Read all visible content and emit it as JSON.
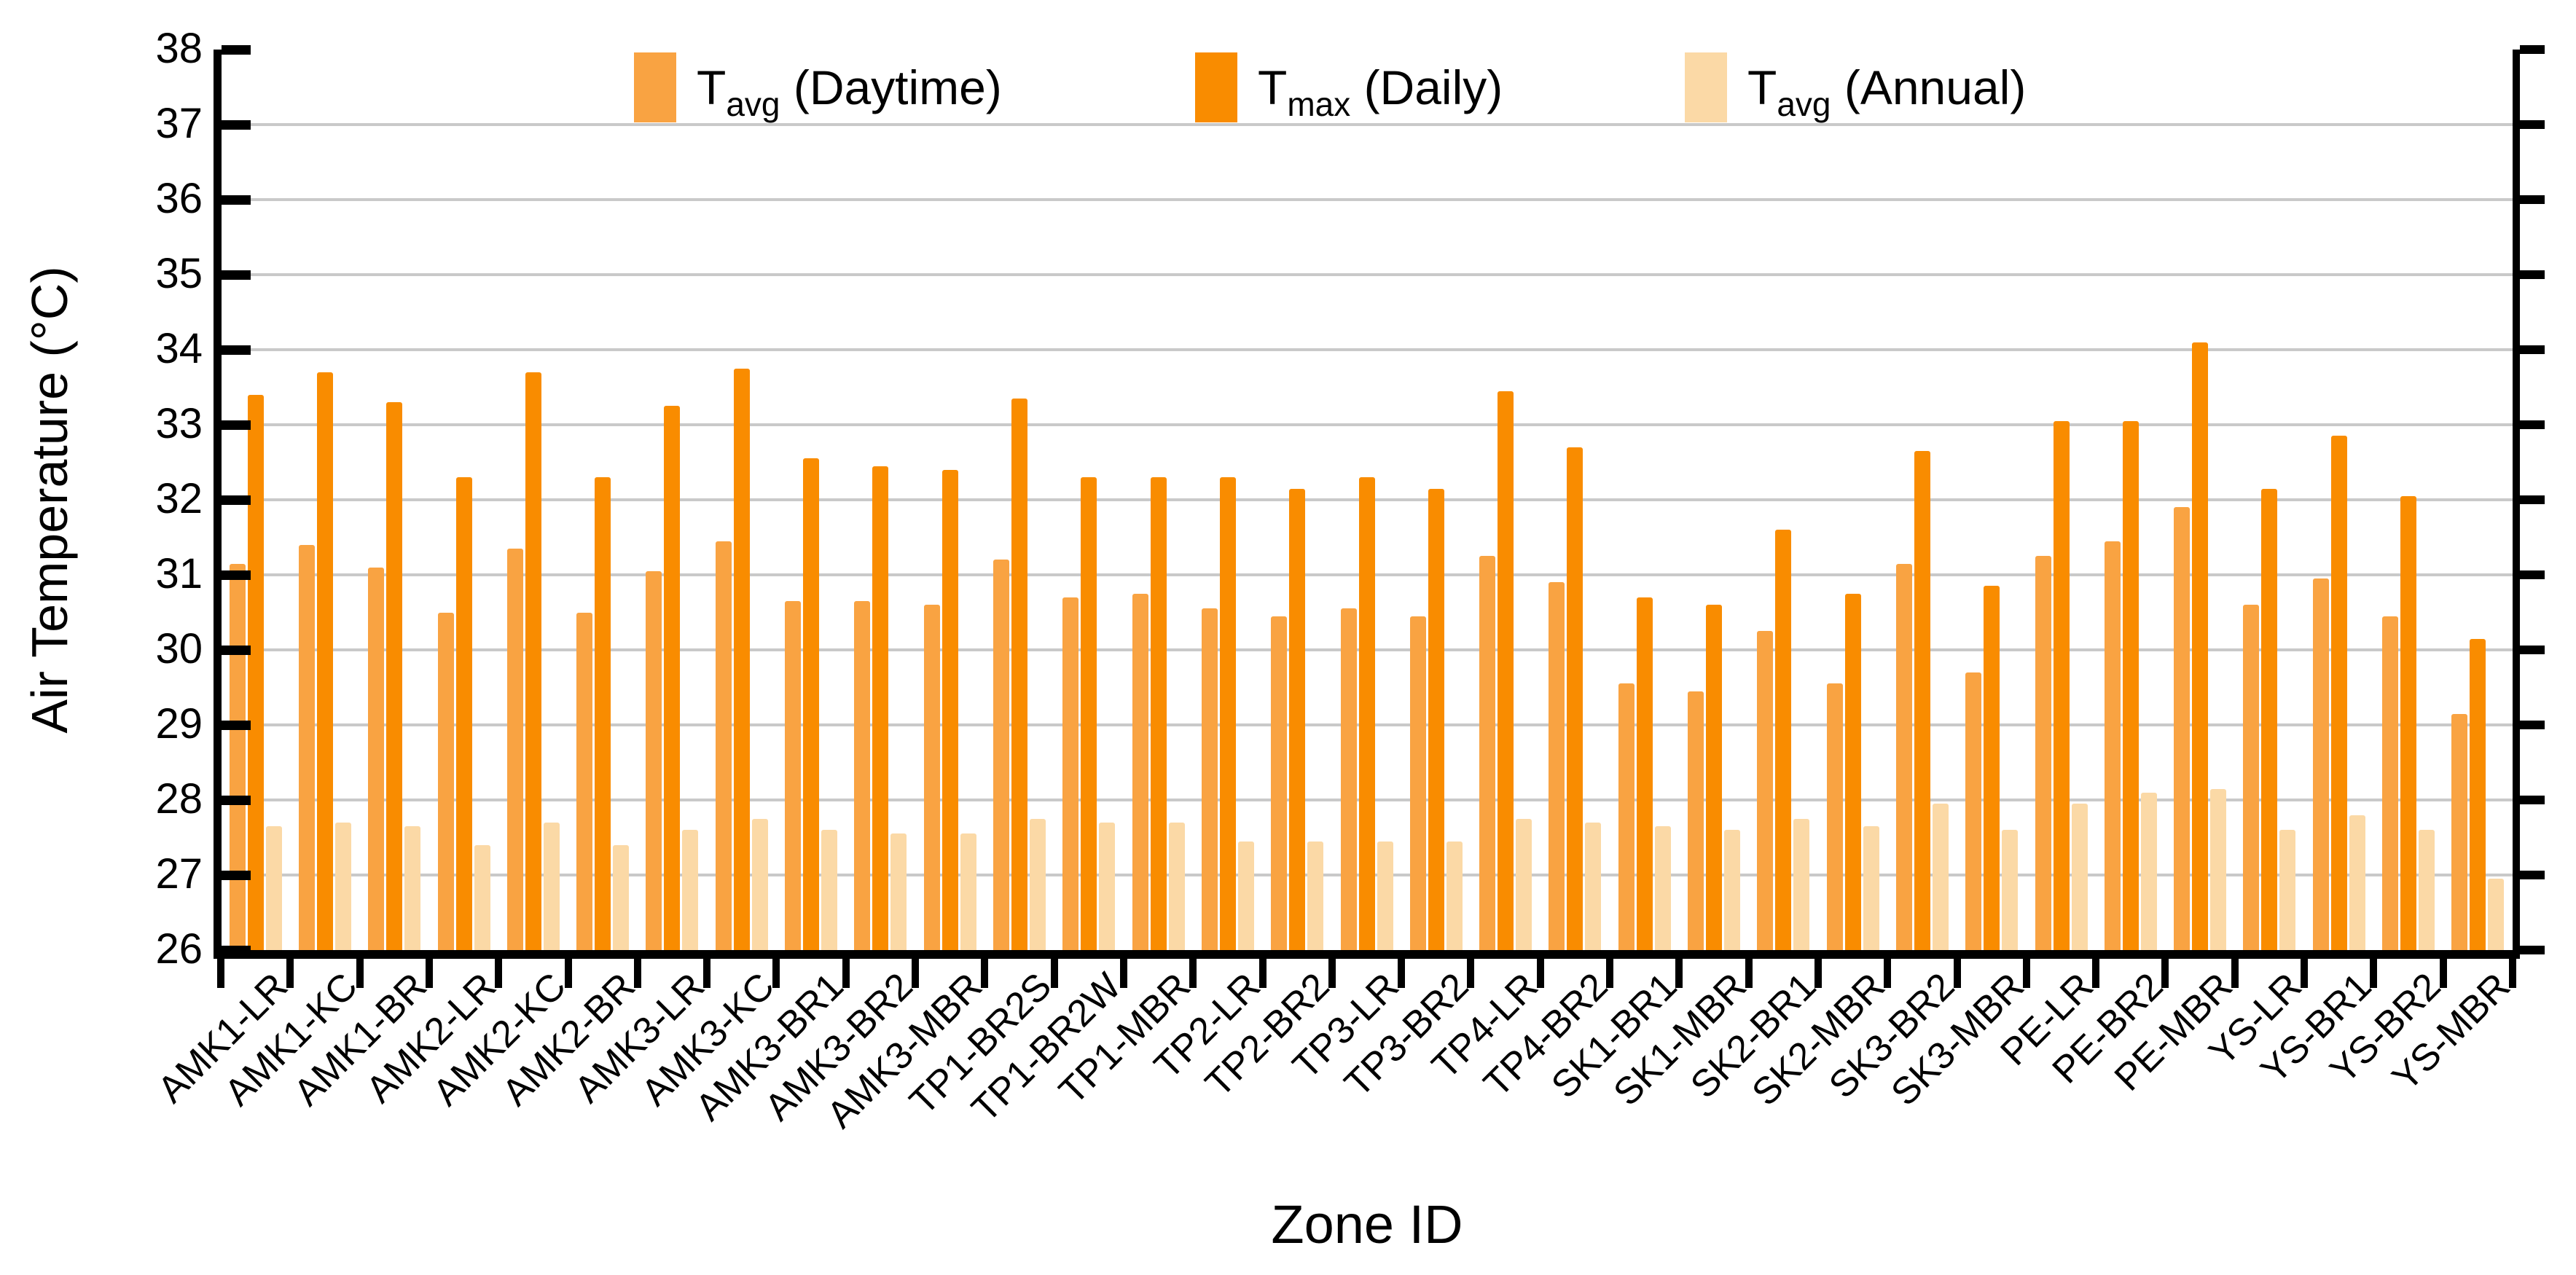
{
  "chart_data": {
    "type": "bar",
    "title": "",
    "xlabel": "Zone ID",
    "ylabel": "Air Temperature (°C)",
    "ylim": [
      26,
      38
    ],
    "yticks": [
      26,
      27,
      28,
      29,
      30,
      31,
      32,
      33,
      34,
      35,
      36,
      37,
      38
    ],
    "grid": "horizontal",
    "legend_position": "top-center",
    "categories": [
      "AMK1-LR",
      "AMK1-KC",
      "AMK1-BR",
      "AMK2-LR",
      "AMK2-KC",
      "AMK2-BR",
      "AMK3-LR",
      "AMK3-KC",
      "AMK3-BR1",
      "AMK3-BR2",
      "AMK3-MBR",
      "TP1-BR2S",
      "TP1-BR2W",
      "TP1-MBR",
      "TP2-LR",
      "TP2-BR2",
      "TP3-LR",
      "TP3-BR2",
      "TP4-LR",
      "TP4-BR2",
      "SK1-BR1",
      "SK1-MBR",
      "SK2-BR1",
      "SK2-MBR",
      "SK3-BR2",
      "SK3-MBR",
      "PE-LR",
      "PE-BR2",
      "PE-MBR",
      "YS-LR",
      "YS-BR1",
      "YS-BR2",
      "YS-MBR"
    ],
    "series": [
      {
        "name": "Tavg (Daytime)",
        "label_main": "T",
        "label_sub": "avg",
        "label_rest": "(Daytime)",
        "color": "#F9A342",
        "values": [
          31.15,
          31.4,
          31.1,
          30.5,
          31.35,
          30.5,
          31.05,
          31.45,
          30.65,
          30.65,
          30.6,
          31.2,
          30.7,
          30.75,
          30.55,
          30.45,
          30.55,
          30.45,
          31.25,
          30.9,
          29.55,
          29.45,
          30.25,
          29.55,
          31.15,
          29.7,
          31.25,
          31.45,
          31.9,
          30.6,
          30.95,
          30.45,
          29.15
        ]
      },
      {
        "name": "Tmax (Daily)",
        "label_main": "T",
        "label_sub": "max",
        "label_rest": "(Daily)",
        "color": "#F98C00",
        "values": [
          33.4,
          33.7,
          33.3,
          32.3,
          33.7,
          32.3,
          33.25,
          33.75,
          32.55,
          32.45,
          32.4,
          33.35,
          32.3,
          32.3,
          32.3,
          32.15,
          32.3,
          32.15,
          33.45,
          32.7,
          30.7,
          30.6,
          31.6,
          30.75,
          32.65,
          30.85,
          33.05,
          33.05,
          34.1,
          32.15,
          32.85,
          32.05,
          30.15
        ]
      },
      {
        "name": "Tavg (Annual)",
        "label_main": "T",
        "label_sub": "avg",
        "label_rest": "(Annual)",
        "color": "#FBD9A6",
        "values": [
          27.65,
          27.7,
          27.65,
          27.4,
          27.7,
          27.4,
          27.6,
          27.75,
          27.6,
          27.55,
          27.55,
          27.75,
          27.7,
          27.7,
          27.45,
          27.45,
          27.45,
          27.45,
          27.75,
          27.7,
          27.65,
          27.6,
          27.75,
          27.65,
          27.95,
          27.6,
          27.95,
          28.1,
          28.15,
          27.6,
          27.8,
          27.6,
          26.95
        ]
      }
    ],
    "colors": {
      "gridline": "#C9C9C9",
      "axis": "#000000"
    }
  }
}
